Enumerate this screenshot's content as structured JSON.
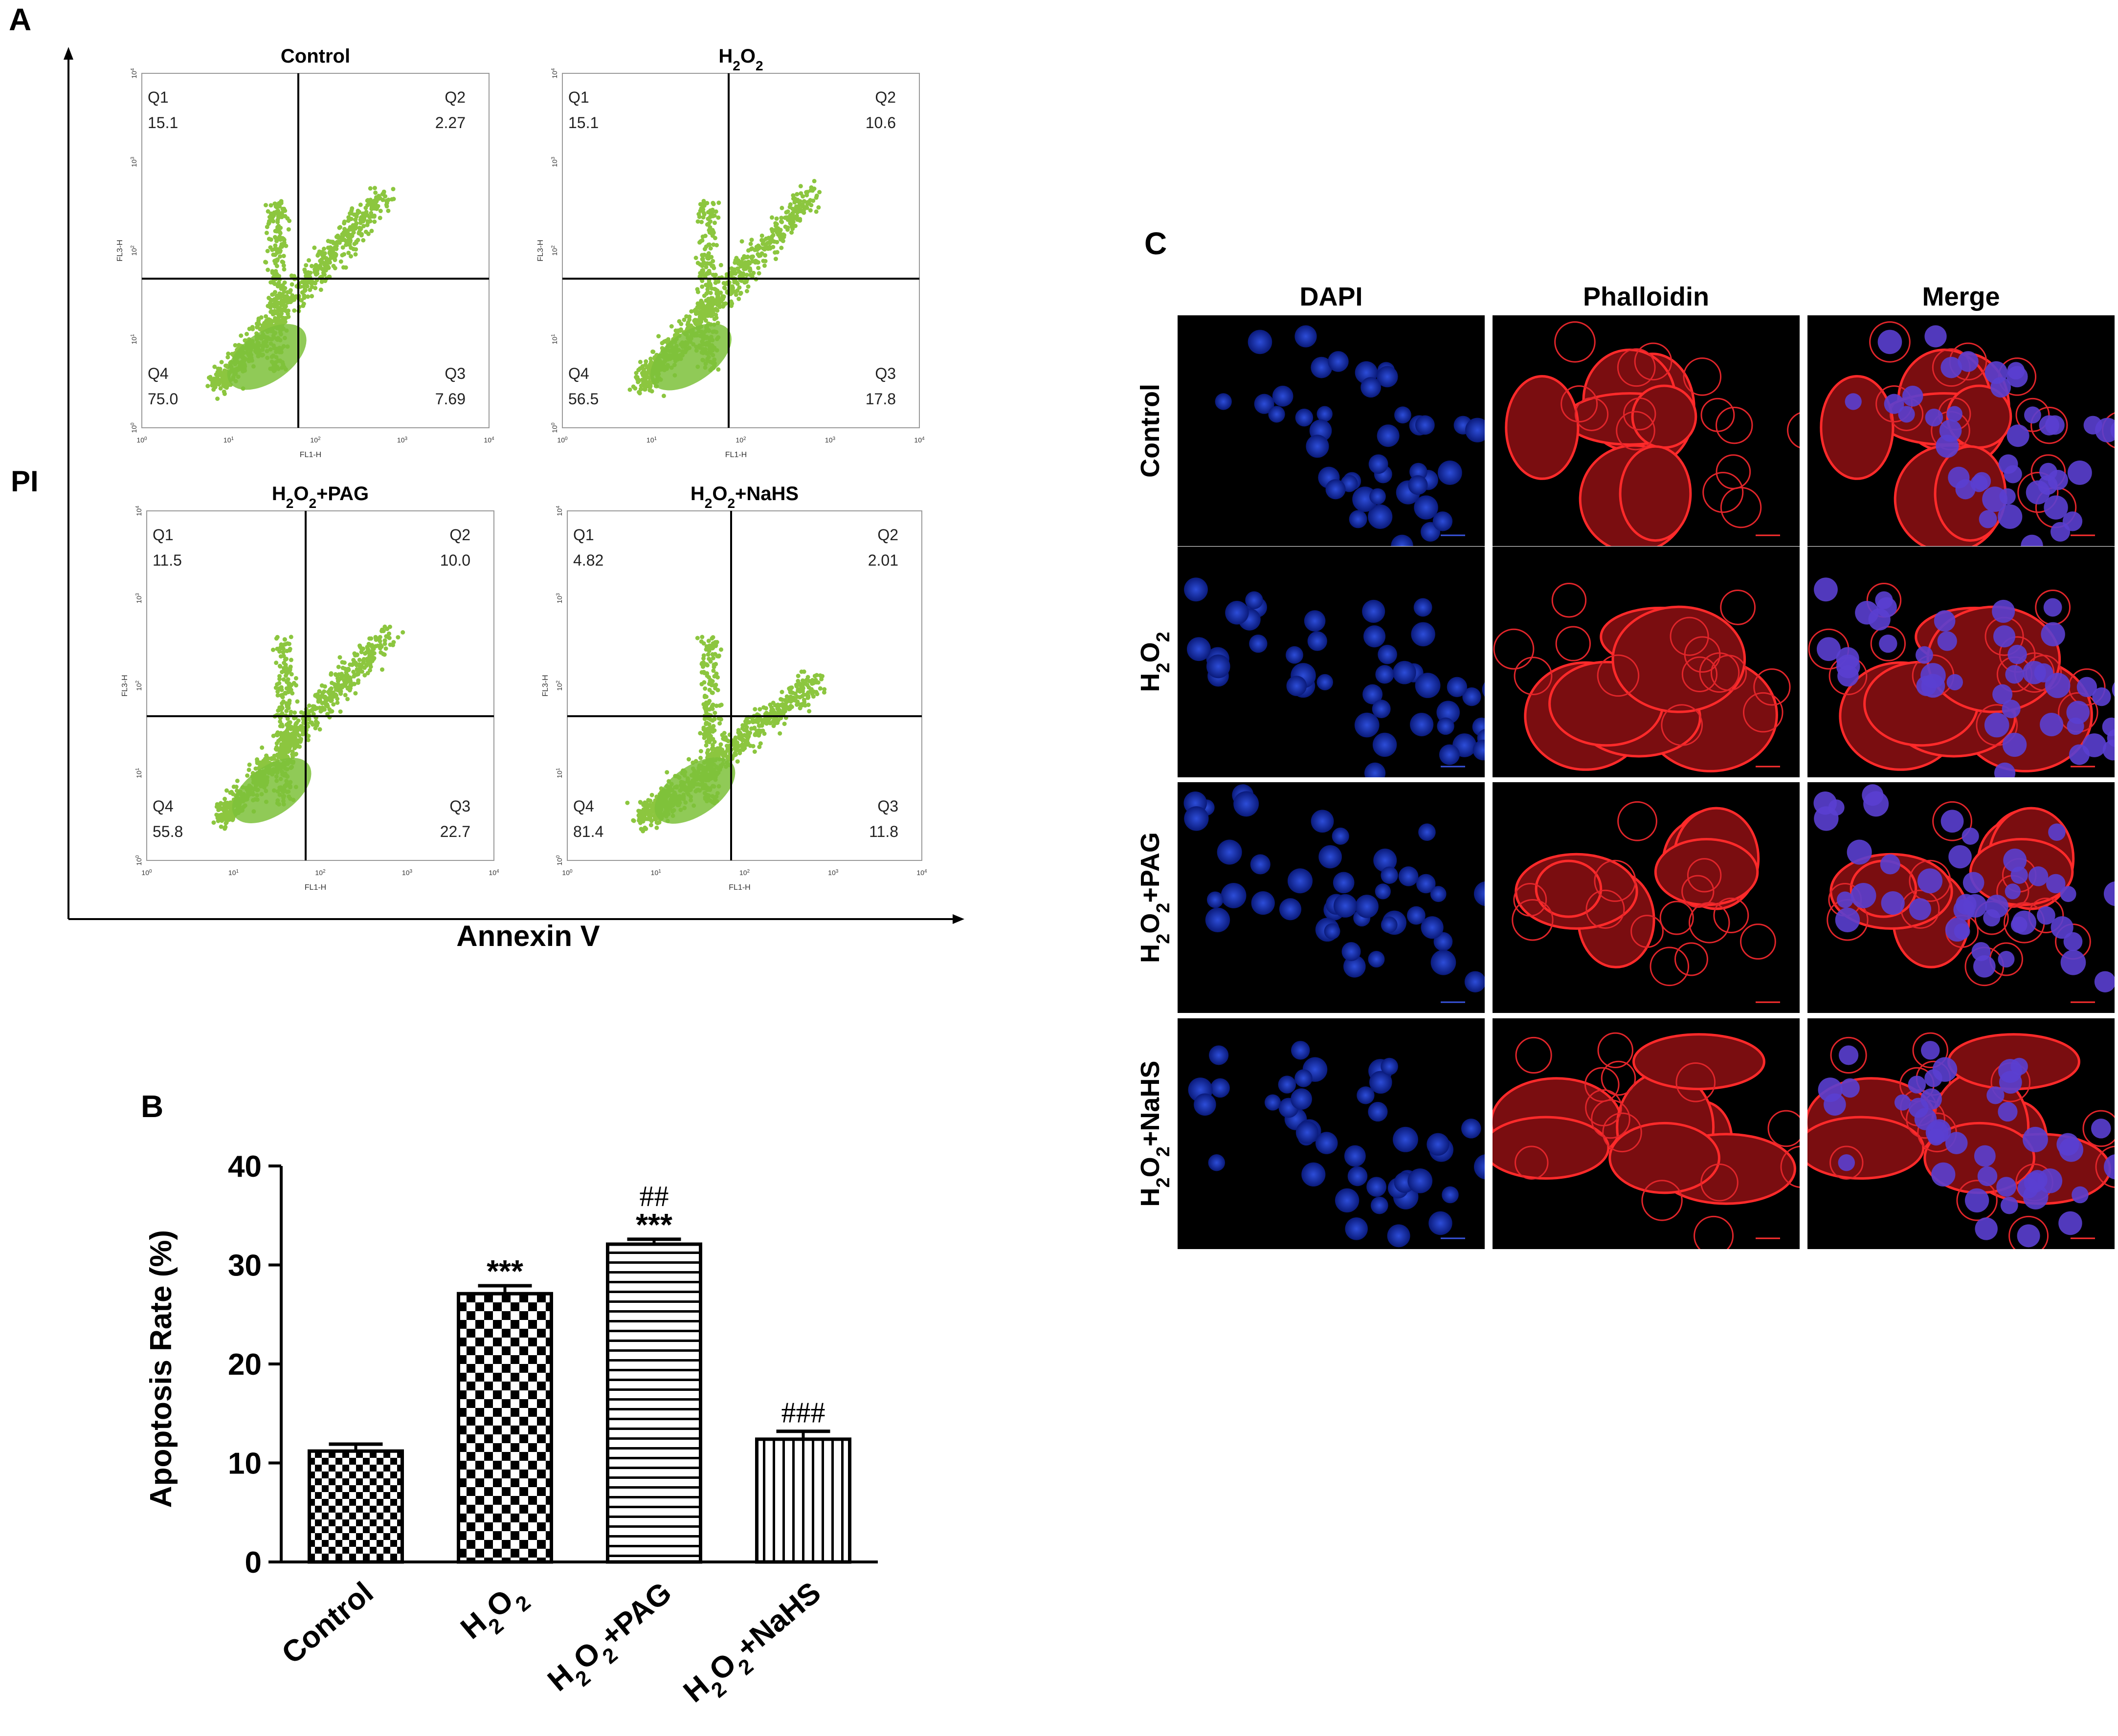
{
  "panels": {
    "a": "A",
    "b": "B",
    "c": "C"
  },
  "panel_a": {
    "y_axis": "PI",
    "x_axis": "Annexin V",
    "plot_x_label": "FL1-H",
    "plot_y_label": "FL3-H",
    "tick_base": "10",
    "tick_exps": [
      "0",
      "1",
      "2",
      "3",
      "4"
    ],
    "plots": [
      {
        "title": "Control",
        "q1": "Q1",
        "q2": "Q2",
        "q3": "Q3",
        "q4": "Q4",
        "v1": "15.1",
        "v2": "2.27",
        "v3": "7.69",
        "v4": "75.0"
      },
      {
        "title_main": "H",
        "title_sub1": "2",
        "title_mid": "O",
        "title_sub2": "2",
        "title_rest": "",
        "q1": "Q1",
        "q2": "Q2",
        "q3": "Q3",
        "q4": "Q4",
        "v1": "15.1",
        "v2": "10.6",
        "v3": "17.8",
        "v4": "56.5"
      },
      {
        "title_main": "H",
        "title_sub1": "2",
        "title_mid": "O",
        "title_sub2": "2",
        "title_rest": "+PAG",
        "q1": "Q1",
        "q2": "Q2",
        "q3": "Q3",
        "q4": "Q4",
        "v1": "11.5",
        "v2": "10.0",
        "v3": "22.7",
        "v4": "55.8"
      },
      {
        "title_main": "H",
        "title_sub1": "2",
        "title_mid": "O",
        "title_sub2": "2",
        "title_rest": "+NaHS",
        "q1": "Q1",
        "q2": "Q2",
        "q3": "Q3",
        "q4": "Q4",
        "v1": "4.82",
        "v2": "2.01",
        "v3": "11.8",
        "v4": "81.4"
      }
    ]
  },
  "chart_data": {
    "type": "bar",
    "categories": [
      "Control",
      "H2O2",
      "H2O2+PAG",
      "H2O2+NaHS"
    ],
    "category_display": [
      {
        "main": "Control",
        "s1": "",
        "mid": "",
        "s2": "",
        "rest": ""
      },
      {
        "main": "H",
        "s1": "2",
        "mid": "O",
        "s2": "2",
        "rest": ""
      },
      {
        "main": "H",
        "s1": "2",
        "mid": "O",
        "s2": "2",
        "rest": "+PAG"
      },
      {
        "main": "H",
        "s1": "2",
        "mid": "O",
        "s2": "2",
        "rest": "+NaHS"
      }
    ],
    "values": [
      11.2,
      27.1,
      32.1,
      12.4
    ],
    "errors": [
      0.7,
      0.8,
      0.5,
      0.8
    ],
    "significance": [
      "",
      "***",
      "***",
      ""
    ],
    "significance_hash": [
      "",
      "",
      "##",
      "###"
    ],
    "patterns": [
      "checker-fine",
      "checker-coarse",
      "horizontal-lines",
      "vertical-lines"
    ],
    "ylabel": "Apoptosis Rate (%)",
    "xlabel": "",
    "title": "",
    "ylim": [
      0,
      40
    ],
    "yticks": [
      0,
      10,
      20,
      30,
      40
    ]
  },
  "panel_c": {
    "col_headers": [
      "DAPI",
      "Phalloidin",
      "Merge"
    ],
    "header_colors": [
      "#1aa3e0",
      "#e0191e",
      "#111111"
    ],
    "rows": [
      {
        "main": "Control",
        "s1": "",
        "mid": "",
        "s2": "",
        "rest": ""
      },
      {
        "main": "H",
        "s1": "2",
        "mid": "O",
        "s2": "2",
        "rest": ""
      },
      {
        "main": "H",
        "s1": "2",
        "mid": "O",
        "s2": "2",
        "rest": "+PAG"
      },
      {
        "main": "H",
        "s1": "2",
        "mid": "O",
        "s2": "2",
        "rest": "+NaHS"
      }
    ]
  }
}
